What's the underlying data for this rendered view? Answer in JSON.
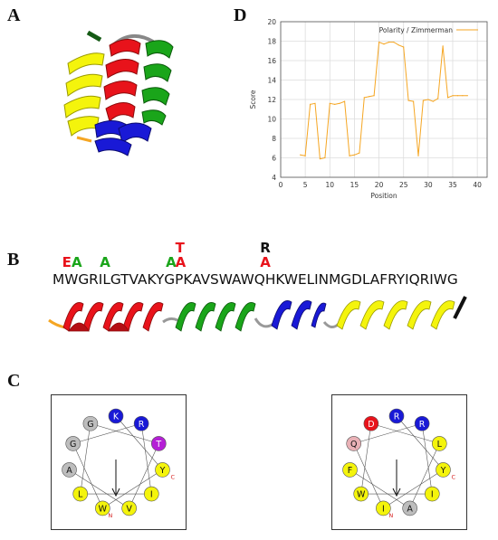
{
  "panels": {
    "a": "A",
    "b": "B",
    "c": "C",
    "d": "D"
  },
  "colors": {
    "red": "#e8131b",
    "green": "#1aa51a",
    "blue": "#1919d6",
    "yellow": "#f4f40c",
    "orange": "#f5a623",
    "grey": "#bdbdbd",
    "purple": "#b51fd6",
    "pink": "#e9b1b6"
  },
  "sequence": {
    "text": "MWGRILGTVAKYGPKAVSWAWQHKWELINMGDLAFRYIQRIWG",
    "mutations": [
      {
        "residue_index": 1,
        "labels": [
          "E"
        ],
        "colors": [
          "#e8131b"
        ]
      },
      {
        "residue_index": 2,
        "labels": [
          "A"
        ],
        "colors": [
          "#1aa51a"
        ]
      },
      {
        "residue_index": 5,
        "labels": [
          "A"
        ],
        "colors": [
          "#1aa51a"
        ]
      },
      {
        "residue_index": 12,
        "labels": [
          "A"
        ],
        "colors": [
          "#1aa51a"
        ]
      },
      {
        "residue_index": 13,
        "labels": [
          "T",
          "A"
        ],
        "colors": [
          "#e8131b",
          "#e8131b"
        ]
      },
      {
        "residue_index": 22,
        "labels": [
          "R",
          "A"
        ],
        "colors": [
          "#111111",
          "#e8131b"
        ]
      }
    ],
    "helix_segments": [
      "red",
      "green",
      "blue",
      "yellow"
    ]
  },
  "chart_data": {
    "type": "line",
    "legend": "Polarity / Zimmerman",
    "legend_position": "top-right",
    "xlabel": "Position",
    "ylabel": "Score",
    "xlim": [
      0,
      42
    ],
    "ylim": [
      4,
      20
    ],
    "xticks": [
      0,
      5,
      10,
      15,
      20,
      25,
      30,
      35,
      40
    ],
    "yticks": [
      4,
      6,
      8,
      10,
      12,
      14,
      16,
      18,
      20
    ],
    "grid": true,
    "series": [
      {
        "name": "Polarity / Zimmerman",
        "color": "#f5a623",
        "x": [
          4,
          5,
          6,
          7,
          8,
          9,
          10,
          11,
          12,
          13,
          14,
          15,
          16,
          17,
          18,
          19,
          20,
          21,
          22,
          23,
          24,
          25,
          26,
          27,
          28,
          29,
          30,
          31,
          32,
          33,
          34,
          35,
          36,
          37,
          38
        ],
        "y": [
          6.3,
          6.2,
          11.5,
          11.6,
          5.9,
          6.0,
          11.6,
          11.5,
          11.6,
          11.8,
          6.2,
          6.3,
          6.5,
          12.2,
          12.3,
          12.4,
          17.9,
          17.7,
          17.9,
          17.9,
          17.6,
          17.4,
          11.9,
          11.8,
          6.2,
          11.9,
          12.0,
          11.8,
          12.1,
          17.5,
          12.2,
          12.4,
          12.4,
          12.4,
          12.4
        ]
      }
    ]
  },
  "wheels": [
    {
      "residues": [
        {
          "letter": "K",
          "color": "#1919d6"
        },
        {
          "letter": "R",
          "color": "#1919d6"
        },
        {
          "letter": "T",
          "color": "#b51fd6"
        },
        {
          "letter": "Y",
          "color": "#f4f40c"
        },
        {
          "letter": "I",
          "color": "#f4f40c"
        },
        {
          "letter": "V",
          "color": "#f4f40c"
        },
        {
          "letter": "W",
          "color": "#f4f40c"
        },
        {
          "letter": "L",
          "color": "#f4f40c"
        },
        {
          "letter": "A",
          "color": "#bdbdbd"
        },
        {
          "letter": "G",
          "color": "#bdbdbd"
        },
        {
          "letter": "G",
          "color": "#bdbdbd"
        }
      ],
      "end_labels": [
        "C",
        "N"
      ]
    },
    {
      "residues": [
        {
          "letter": "R",
          "color": "#1919d6"
        },
        {
          "letter": "R",
          "color": "#1919d6"
        },
        {
          "letter": "L",
          "color": "#f4f40c"
        },
        {
          "letter": "Y",
          "color": "#f4f40c"
        },
        {
          "letter": "I",
          "color": "#f4f40c"
        },
        {
          "letter": "A",
          "color": "#bdbdbd"
        },
        {
          "letter": "I",
          "color": "#f4f40c"
        },
        {
          "letter": "W",
          "color": "#f4f40c"
        },
        {
          "letter": "F",
          "color": "#f4f40c"
        },
        {
          "letter": "Q",
          "color": "#e9b1b6"
        },
        {
          "letter": "D",
          "color": "#e8131b"
        }
      ],
      "end_labels": [
        "C",
        "N"
      ]
    }
  ]
}
